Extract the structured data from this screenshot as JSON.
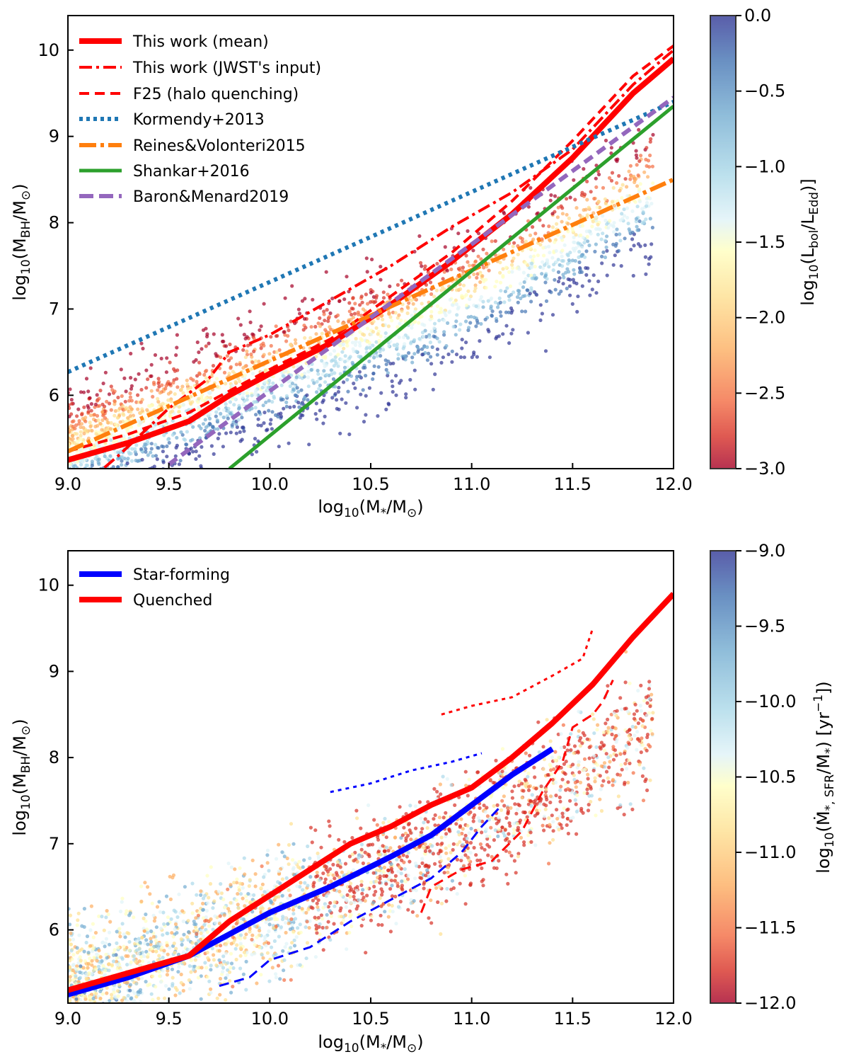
{
  "chart_data": [
    {
      "type": "scatter",
      "xlabel_base": "log",
      "xlabel_sub": "10",
      "xlabel_body": "(M",
      "xlabel_star": "*",
      "xlabel_end": "/M",
      "xlabel_sun": "⊙",
      "xlabel_close": ")",
      "ylabel_base": "log",
      "ylabel_sub": "10",
      "ylabel_body": "(M",
      "ylabel_bh": "BH",
      "ylabel_end": "/M",
      "ylabel_sun": "⊙",
      "ylabel_close": ")",
      "xlim": [
        9.0,
        12.0
      ],
      "ylim": [
        5.15,
        10.4
      ],
      "xticks": [
        "9.0",
        "9.5",
        "10.0",
        "10.5",
        "11.0",
        "11.5",
        "12.0"
      ],
      "yticks": [
        "6",
        "7",
        "8",
        "9",
        "10"
      ],
      "colorbar": {
        "label_pre": "log",
        "label_sub": "10",
        "label_mid": "(L",
        "label_bol": "bol",
        "label_slash": "/L",
        "label_edd": "Edd",
        "label_close": ")]",
        "range": [
          -3.0,
          0.0
        ],
        "ticks": [
          "0.0",
          "−0.5",
          "−1.0",
          "−1.5",
          "−2.0",
          "−2.5",
          "−3.0"
        ],
        "colormap": "RdYlBu"
      },
      "legend_position": "upper-left",
      "series": [
        {
          "name": "This work (mean)",
          "style": "solid",
          "color": "#ff0000",
          "x": [
            9.0,
            9.3,
            9.6,
            9.8,
            10.0,
            10.3,
            10.6,
            10.9,
            11.2,
            11.5,
            11.8,
            12.0
          ],
          "y": [
            5.25,
            5.45,
            5.7,
            6.0,
            6.25,
            6.6,
            7.05,
            7.55,
            8.1,
            8.75,
            9.5,
            9.9
          ]
        },
        {
          "name": "This work (JWST's input)",
          "style": "dashdot",
          "color": "#ff0000",
          "x": [
            9.0,
            9.25,
            9.5,
            9.7,
            9.8,
            10.0,
            10.3,
            10.6,
            10.9,
            11.2,
            11.5,
            11.8,
            12.0
          ],
          "y": [
            4.8,
            5.3,
            5.85,
            6.2,
            6.5,
            6.7,
            7.1,
            7.5,
            7.95,
            8.35,
            8.85,
            9.6,
            10.0
          ]
        },
        {
          "name": "F25 (halo quenching)",
          "style": "dashed",
          "color": "#ff0000",
          "x": [
            9.0,
            9.3,
            9.6,
            9.8,
            10.0,
            10.3,
            10.6,
            10.9,
            11.2,
            11.5,
            11.8,
            12.0
          ],
          "y": [
            5.35,
            5.55,
            5.8,
            6.05,
            6.3,
            6.65,
            7.15,
            7.65,
            8.25,
            8.95,
            9.7,
            10.05
          ]
        },
        {
          "name": "Kormendy+2013",
          "style": "dotted",
          "color": "#1f77b4",
          "x": [
            9.0,
            12.0
          ],
          "y": [
            6.27,
            9.4
          ]
        },
        {
          "name": "Reines&Volonteri2015",
          "style": "dashdot-long",
          "color": "#ff7f0e",
          "x": [
            9.0,
            12.0
          ],
          "y": [
            5.35,
            8.5
          ]
        },
        {
          "name": "Shankar+2016",
          "style": "solid",
          "color": "#2ca02c",
          "x": [
            9.8,
            12.0
          ],
          "y": [
            5.15,
            9.35
          ]
        },
        {
          "name": "Baron&Menard2019",
          "style": "dashed",
          "color": "#9467bd",
          "x": [
            9.5,
            12.0
          ],
          "y": [
            5.2,
            9.45
          ]
        }
      ]
    },
    {
      "type": "scatter",
      "xlabel_base": "log",
      "xlabel_sub": "10",
      "xlabel_body": "(M",
      "xlabel_star": "*",
      "xlabel_end": "/M",
      "xlabel_sun": "⊙",
      "xlabel_close": ")",
      "ylabel_base": "log",
      "ylabel_sub": "10",
      "ylabel_body": "(M",
      "ylabel_bh": "BH",
      "ylabel_end": "/M",
      "ylabel_sun": "⊙",
      "ylabel_close": ")",
      "xlim": [
        9.0,
        12.0
      ],
      "ylim": [
        5.15,
        10.4
      ],
      "xticks": [
        "9.0",
        "9.5",
        "10.0",
        "10.5",
        "11.0",
        "11.5",
        "12.0"
      ],
      "yticks": [
        "6",
        "7",
        "8",
        "9",
        "10"
      ],
      "colorbar": {
        "label_pre": "log",
        "label_sub": "10",
        "label_mid": "(Ṁ",
        "label_star": "*, SFR",
        "label_slash": "/M",
        "label_star2": "*",
        "label_close": ") [yr",
        "label_exp": "−1",
        "label_end": "])",
        "range": [
          -12.0,
          -9.0
        ],
        "ticks": [
          "−9.0",
          "−9.5",
          "−10.0",
          "−10.5",
          "−11.0",
          "−11.5",
          "−12.0"
        ],
        "colormap": "RdYlBu"
      },
      "legend_position": "upper-left",
      "series": [
        {
          "name": "Star-forming",
          "style": "solid",
          "color": "#0000ff",
          "x": [
            9.0,
            9.3,
            9.6,
            9.8,
            10.0,
            10.3,
            10.6,
            10.8,
            11.0,
            11.2,
            11.4
          ],
          "y": [
            5.25,
            5.45,
            5.7,
            5.95,
            6.2,
            6.5,
            6.85,
            7.1,
            7.45,
            7.8,
            8.1
          ]
        },
        {
          "name": "Quenched",
          "style": "solid",
          "color": "#ff0000",
          "x": [
            9.0,
            9.3,
            9.6,
            9.8,
            10.0,
            10.2,
            10.4,
            10.6,
            10.8,
            11.0,
            11.2,
            11.4,
            11.6,
            11.8,
            12.0
          ],
          "y": [
            5.3,
            5.5,
            5.7,
            6.1,
            6.4,
            6.7,
            7.0,
            7.2,
            7.45,
            7.65,
            8.0,
            8.4,
            8.85,
            9.4,
            9.9
          ]
        },
        {
          "style": "dashed",
          "color": "#0000ff",
          "x": [
            9.75,
            9.9,
            10.0,
            10.2,
            10.4,
            10.6,
            10.8,
            10.95,
            11.05,
            11.15
          ],
          "y": [
            5.35,
            5.45,
            5.65,
            5.8,
            6.1,
            6.35,
            6.6,
            6.9,
            7.2,
            7.45
          ]
        },
        {
          "style": "dotted",
          "color": "#0000ff",
          "x": [
            10.3,
            10.5,
            10.7,
            10.9,
            11.05
          ],
          "y": [
            7.6,
            7.7,
            7.85,
            7.95,
            8.05
          ]
        },
        {
          "style": "dashed",
          "color": "#ff0000",
          "x": [
            10.75,
            10.8,
            10.95,
            11.1,
            11.25,
            11.35,
            11.45,
            11.5,
            11.6,
            11.65,
            11.7
          ],
          "y": [
            6.2,
            6.5,
            6.7,
            6.8,
            7.15,
            7.6,
            7.95,
            8.35,
            8.5,
            8.65,
            8.9
          ]
        },
        {
          "style": "dotted",
          "color": "#ff0000",
          "x": [
            10.85,
            11.0,
            11.2,
            11.4,
            11.55,
            11.6
          ],
          "y": [
            8.5,
            8.6,
            8.7,
            8.95,
            9.15,
            9.5
          ]
        }
      ]
    }
  ]
}
